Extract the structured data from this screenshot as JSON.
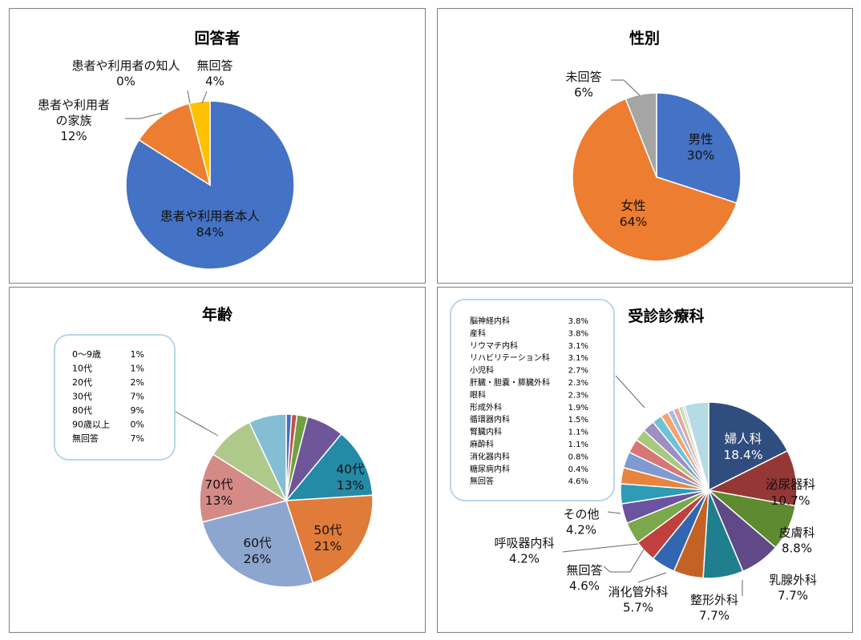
{
  "chart_data": [
    {
      "type": "pie",
      "title": "回答者",
      "slices": [
        {
          "label": [
            "患者や利用者本人"
          ],
          "pct": "84%",
          "value": 84,
          "color": "#4472c4"
        },
        {
          "label": [
            "患者や利用者",
            "の家族"
          ],
          "pct": "12%",
          "value": 12,
          "color": "#ed7d31"
        },
        {
          "label": [
            "患者や利用者の知人"
          ],
          "pct": "0%",
          "value": 0,
          "color": "#a5a5a5"
        },
        {
          "label": [
            "無回答"
          ],
          "pct": "4%",
          "value": 4,
          "color": "#ffc000"
        }
      ]
    },
    {
      "type": "pie",
      "title": "性別",
      "slices": [
        {
          "label": [
            "男性"
          ],
          "pct": "30%",
          "value": 30,
          "color": "#4472c4"
        },
        {
          "label": [
            "女性"
          ],
          "pct": "64%",
          "value": 64,
          "color": "#ed7d31"
        },
        {
          "label": [
            "未回答"
          ],
          "pct": "6%",
          "value": 6,
          "color": "#a5a5a5"
        }
      ]
    },
    {
      "type": "pie",
      "title": "年齢",
      "slices": [
        {
          "label": "0〜9歳",
          "pct": "1%",
          "value": 1,
          "color": "#4472c4"
        },
        {
          "label": "10代",
          "pct": "1%",
          "value": 1,
          "color": "#c0504d"
        },
        {
          "label": "20代",
          "pct": "2%",
          "value": 2,
          "color": "#70a040"
        },
        {
          "label": "30代",
          "pct": "7%",
          "value": 7,
          "color": "#6f5599"
        },
        {
          "label": "40代",
          "pct": "13%",
          "value": 13,
          "color": "#248aa6"
        },
        {
          "label": "50代",
          "pct": "21%",
          "value": 21,
          "color": "#e07b39"
        },
        {
          "label": "60代",
          "pct": "26%",
          "value": 26,
          "color": "#8da6cf"
        },
        {
          "label": "70代",
          "pct": "13%",
          "value": 13,
          "color": "#d48a87"
        },
        {
          "label": "80代",
          "pct": "9%",
          "value": 9,
          "color": "#aec98a"
        },
        {
          "label": "90歳以上",
          "pct": "0%",
          "value": 0,
          "color": "#9a8cbd"
        },
        {
          "label": "無回答",
          "pct": "7%",
          "value": 7,
          "color": "#85bdd4"
        }
      ]
    },
    {
      "type": "pie",
      "title": "受診診療科",
      "slices": [
        {
          "label": "婦人科",
          "pct": "18.4%",
          "value": 18.4,
          "color": "#2f4d7e"
        },
        {
          "label": "泌尿器科",
          "pct": "10.7%",
          "value": 10.7,
          "color": "#953735"
        },
        {
          "label": "皮膚科",
          "pct": "8.8%",
          "value": 8.8,
          "color": "#5e8a30"
        },
        {
          "label": "乳腺外科",
          "pct": "7.7%",
          "value": 7.7,
          "color": "#5f4a87"
        },
        {
          "label": "整形外科",
          "pct": "7.7%",
          "value": 7.7,
          "color": "#1f7f8f"
        },
        {
          "label": "消化管外科",
          "pct": "5.7%",
          "value": 5.7,
          "color": "#c46226"
        },
        {
          "label": "無回答",
          "pct": "4.6%",
          "value": 4.6,
          "color": "#3366b0"
        },
        {
          "label": "呼吸器内科",
          "pct": "4.2%",
          "value": 4.2,
          "color": "#c0403d"
        },
        {
          "label": "その他",
          "pct": "4.2%",
          "value": 4.2,
          "color": "#7aa84a"
        },
        {
          "label": "脳神経内科",
          "pct": "3.8%",
          "value": 3.8,
          "color": "#6a54a0"
        },
        {
          "label": "産科",
          "pct": "3.8%",
          "value": 3.8,
          "color": "#2d9cb4"
        },
        {
          "label": "リウマチ内科",
          "pct": "3.1%",
          "value": 3.1,
          "color": "#e8843e"
        },
        {
          "label": "リハビリテーション科",
          "pct": "3.1%",
          "value": 3.1,
          "color": "#7f9ad0"
        },
        {
          "label": "小児科",
          "pct": "2.7%",
          "value": 2.7,
          "color": "#d77775"
        },
        {
          "label": "肝臓・胆嚢・膵臓外科",
          "pct": "2.3%",
          "value": 2.3,
          "color": "#a9c97f"
        },
        {
          "label": "眼科",
          "pct": "2.3%",
          "value": 2.3,
          "color": "#9d8fc2"
        },
        {
          "label": "形成外科",
          "pct": "1.9%",
          "value": 1.9,
          "color": "#6fc2d6"
        },
        {
          "label": "循環器内科",
          "pct": "1.5%",
          "value": 1.5,
          "color": "#f4a46c"
        },
        {
          "label": "腎臓内科",
          "pct": "1.1%",
          "value": 1.1,
          "color": "#a7b9e0"
        },
        {
          "label": "麻酔科",
          "pct": "1.1%",
          "value": 1.1,
          "color": "#e1a9a7"
        },
        {
          "label": "消化器内科",
          "pct": "0.8%",
          "value": 0.8,
          "color": "#c8dcaa"
        },
        {
          "label": "糖尿病内科",
          "pct": "0.4%",
          "value": 0.4,
          "color": "#c3bad8"
        },
        {
          "label": "無回答",
          "pct": "4.6%",
          "value": 4.6,
          "color": "#b4dbe6"
        }
      ],
      "callout_list": [
        {
          "label": "脳神経内科",
          "pct": "3.8%"
        },
        {
          "label": "産科",
          "pct": "3.8%"
        },
        {
          "label": "リウマチ内科",
          "pct": "3.1%"
        },
        {
          "label": "リハビリテーション科",
          "pct": "3.1%"
        },
        {
          "label": "小児科",
          "pct": "2.7%"
        },
        {
          "label": "肝臓・胆嚢・膵臓外科",
          "pct": "2.3%"
        },
        {
          "label": "眼科",
          "pct": "2.3%"
        },
        {
          "label": "形成外科",
          "pct": "1.9%"
        },
        {
          "label": "循環器内科",
          "pct": "1.5%"
        },
        {
          "label": "腎臓内科",
          "pct": "1.1%"
        },
        {
          "label": "麻酔科",
          "pct": "1.1%"
        },
        {
          "label": "消化器内科",
          "pct": "0.8%"
        },
        {
          "label": "糖尿病内科",
          "pct": "0.4%"
        },
        {
          "label": "無回答",
          "pct": "4.6%"
        }
      ]
    }
  ]
}
